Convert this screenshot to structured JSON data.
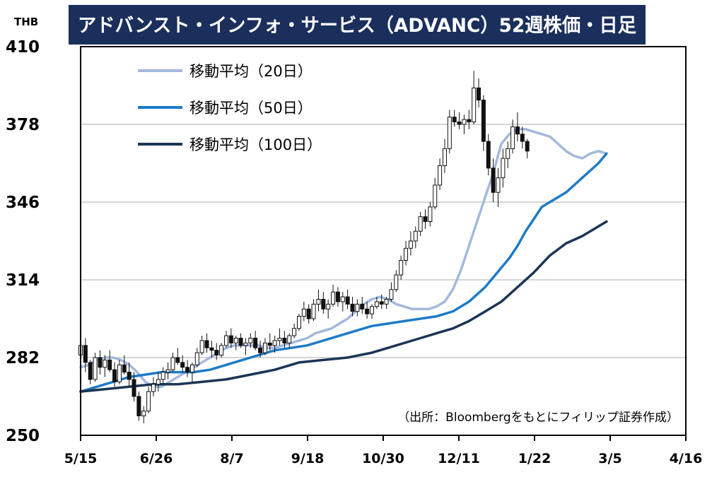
{
  "chart_data": {
    "type": "candlestick",
    "title": "アドバンスト・インフォ・サービス（ADVANC）52週株価・日足",
    "unit": "THB",
    "source": "（出所：Bloombergをもとにフィリップ証券作成）",
    "ylim": [
      250,
      410
    ],
    "yticks": [
      "410",
      "378",
      "346",
      "314",
      "282",
      "250"
    ],
    "xticks": [
      "5/15",
      "6/26",
      "8/7",
      "9/18",
      "10/30",
      "12/11",
      "1/22",
      "3/5",
      "4/16"
    ],
    "grid": true,
    "legend_position": "top-left",
    "legend": [
      {
        "name": "移動平均（20日）",
        "color": "#a3b9dc"
      },
      {
        "name": "移動平均（50日）",
        "color": "#1f7bc6"
      },
      {
        "name": "移動平均（100日）",
        "color": "#1b3556"
      }
    ],
    "candle_color": "#111111",
    "series": [
      {
        "name": "移動平均（20日）",
        "color": "#a3b9dc",
        "x": [
          0,
          5,
          10,
          15,
          20,
          25,
          30,
          35,
          40,
          45,
          50,
          55,
          60,
          65,
          70,
          75,
          80,
          85,
          90,
          95,
          100,
          105,
          110,
          115,
          120,
          125,
          130,
          135,
          140,
          145,
          150,
          155,
          160,
          165,
          170,
          175,
          180,
          185,
          190,
          195,
          200,
          205,
          210,
          215,
          220,
          225,
          230,
          235,
          240,
          245,
          250,
          255,
          260,
          265,
          270,
          275,
          280,
          285,
          290,
          295,
          300,
          305,
          310,
          315,
          320,
          325
        ],
        "y": [
          278,
          279,
          281,
          282,
          282,
          281,
          279,
          276,
          272,
          270,
          270,
          272,
          274,
          276,
          278,
          280,
          282,
          284,
          286,
          287,
          287,
          287,
          287,
          286,
          286,
          287,
          288,
          289,
          290,
          292,
          293,
          294,
          296,
          298,
          301,
          304,
          306,
          307,
          306,
          304,
          303,
          302,
          302,
          302,
          303,
          305,
          310,
          318,
          328,
          338,
          348,
          358,
          370,
          374,
          376,
          376,
          375,
          374,
          373,
          370,
          367,
          365,
          364,
          366,
          367,
          366
        ]
      },
      {
        "name": "移動平均（50日）",
        "color": "#1f7bc6",
        "x": [
          0,
          10,
          20,
          30,
          40,
          50,
          60,
          70,
          80,
          90,
          100,
          110,
          120,
          130,
          140,
          150,
          160,
          170,
          180,
          190,
          200,
          210,
          220,
          230,
          240,
          250,
          255,
          260,
          265,
          270,
          275,
          280,
          285,
          290,
          295,
          300,
          305,
          310,
          315,
          320,
          325
        ],
        "y": [
          268,
          270,
          272,
          274,
          275,
          276,
          276,
          276,
          277,
          279,
          281,
          283,
          285,
          286,
          287,
          289,
          291,
          293,
          295,
          296,
          297,
          298,
          299,
          301,
          305,
          311,
          315,
          319,
          323,
          328,
          334,
          339,
          344,
          346,
          348,
          350,
          353,
          356,
          359,
          362,
          366
        ]
      },
      {
        "name": "移動平均（100日）",
        "color": "#1b3556",
        "x": [
          0,
          15,
          30,
          45,
          60,
          75,
          90,
          105,
          120,
          135,
          150,
          165,
          180,
          195,
          210,
          220,
          230,
          240,
          250,
          260,
          270,
          280,
          290,
          300,
          310,
          320,
          325
        ],
        "y": [
          268,
          269,
          270,
          271,
          271,
          272,
          273,
          275,
          277,
          280,
          281,
          282,
          284,
          287,
          290,
          292,
          294,
          297,
          301,
          305,
          311,
          317,
          324,
          329,
          332,
          336,
          338
        ]
      }
    ],
    "candles": [
      [
        0,
        283,
        288,
        279,
        287
      ],
      [
        3,
        287,
        290,
        276,
        280
      ],
      [
        6,
        280,
        281,
        271,
        273
      ],
      [
        9,
        273,
        284,
        272,
        282
      ],
      [
        12,
        282,
        285,
        275,
        278
      ],
      [
        15,
        278,
        283,
        274,
        281
      ],
      [
        18,
        281,
        285,
        276,
        277
      ],
      [
        21,
        277,
        280,
        270,
        272
      ],
      [
        24,
        272,
        281,
        271,
        279
      ],
      [
        27,
        279,
        283,
        275,
        276
      ],
      [
        30,
        276,
        280,
        270,
        273
      ],
      [
        33,
        273,
        276,
        264,
        266
      ],
      [
        36,
        266,
        268,
        256,
        258
      ],
      [
        39,
        258,
        262,
        255,
        260
      ],
      [
        42,
        260,
        270,
        259,
        268
      ],
      [
        45,
        268,
        274,
        266,
        271
      ],
      [
        48,
        271,
        276,
        268,
        273
      ],
      [
        51,
        273,
        278,
        271,
        276
      ],
      [
        54,
        276,
        280,
        273,
        277
      ],
      [
        57,
        277,
        284,
        276,
        282
      ],
      [
        60,
        282,
        286,
        279,
        280
      ],
      [
        63,
        280,
        283,
        276,
        278
      ],
      [
        66,
        278,
        281,
        274,
        276
      ],
      [
        69,
        276,
        280,
        272,
        279
      ],
      [
        72,
        279,
        286,
        278,
        284
      ],
      [
        75,
        284,
        291,
        283,
        289
      ],
      [
        78,
        289,
        292,
        284,
        286
      ],
      [
        81,
        286,
        289,
        282,
        285
      ],
      [
        84,
        285,
        288,
        281,
        283
      ],
      [
        87,
        283,
        288,
        282,
        287
      ],
      [
        90,
        287,
        293,
        286,
        291
      ],
      [
        93,
        291,
        294,
        286,
        288
      ],
      [
        96,
        288,
        291,
        285,
        290
      ],
      [
        99,
        290,
        292,
        286,
        287
      ],
      [
        102,
        287,
        290,
        283,
        288
      ],
      [
        105,
        288,
        292,
        286,
        290
      ],
      [
        108,
        290,
        293,
        285,
        286
      ],
      [
        111,
        286,
        289,
        282,
        284
      ],
      [
        114,
        284,
        290,
        283,
        288
      ],
      [
        117,
        288,
        292,
        285,
        287
      ],
      [
        120,
        287,
        291,
        284,
        289
      ],
      [
        123,
        289,
        294,
        287,
        290
      ],
      [
        126,
        290,
        293,
        286,
        288
      ],
      [
        129,
        288,
        292,
        286,
        291
      ],
      [
        132,
        291,
        296,
        290,
        294
      ],
      [
        135,
        294,
        300,
        293,
        299
      ],
      [
        138,
        299,
        305,
        297,
        302
      ],
      [
        141,
        302,
        304,
        296,
        298
      ],
      [
        144,
        298,
        306,
        297,
        304
      ],
      [
        147,
        304,
        310,
        301,
        306
      ],
      [
        150,
        306,
        309,
        300,
        302
      ],
      [
        153,
        302,
        306,
        298,
        304
      ],
      [
        156,
        304,
        312,
        303,
        309
      ],
      [
        159,
        309,
        311,
        303,
        305
      ],
      [
        162,
        305,
        309,
        301,
        307
      ],
      [
        165,
        307,
        310,
        302,
        304
      ],
      [
        168,
        304,
        307,
        299,
        301
      ],
      [
        171,
        301,
        306,
        299,
        304
      ],
      [
        174,
        304,
        307,
        300,
        302
      ],
      [
        177,
        302,
        305,
        298,
        300
      ],
      [
        180,
        300,
        304,
        298,
        303
      ],
      [
        183,
        303,
        307,
        302,
        305
      ],
      [
        186,
        305,
        308,
        302,
        304
      ],
      [
        189,
        304,
        307,
        302,
        306
      ],
      [
        192,
        306,
        313,
        305,
        310
      ],
      [
        195,
        310,
        318,
        309,
        316
      ],
      [
        198,
        316,
        324,
        314,
        322
      ],
      [
        201,
        322,
        330,
        320,
        327
      ],
      [
        204,
        327,
        334,
        324,
        330
      ],
      [
        207,
        330,
        336,
        327,
        334
      ],
      [
        210,
        334,
        342,
        332,
        340
      ],
      [
        213,
        340,
        343,
        335,
        338
      ],
      [
        216,
        338,
        346,
        336,
        344
      ],
      [
        219,
        344,
        356,
        343,
        353
      ],
      [
        222,
        353,
        364,
        351,
        361
      ],
      [
        225,
        361,
        372,
        358,
        368
      ],
      [
        228,
        368,
        384,
        366,
        381
      ],
      [
        231,
        381,
        384,
        377,
        379
      ],
      [
        234,
        379,
        383,
        376,
        378
      ],
      [
        237,
        378,
        382,
        374,
        380
      ],
      [
        240,
        380,
        384,
        376,
        379
      ],
      [
        243,
        379,
        400,
        378,
        393
      ],
      [
        246,
        393,
        397,
        385,
        388
      ],
      [
        249,
        388,
        390,
        367,
        371
      ],
      [
        252,
        371,
        374,
        357,
        360
      ],
      [
        255,
        360,
        364,
        346,
        350
      ],
      [
        258,
        350,
        360,
        344,
        356
      ],
      [
        261,
        356,
        368,
        352,
        364
      ],
      [
        264,
        364,
        371,
        360,
        368
      ],
      [
        267,
        368,
        380,
        366,
        377
      ],
      [
        270,
        377,
        383,
        371,
        374
      ],
      [
        273,
        374,
        377,
        368,
        371
      ],
      [
        276,
        371,
        372,
        364,
        367
      ]
    ]
  }
}
